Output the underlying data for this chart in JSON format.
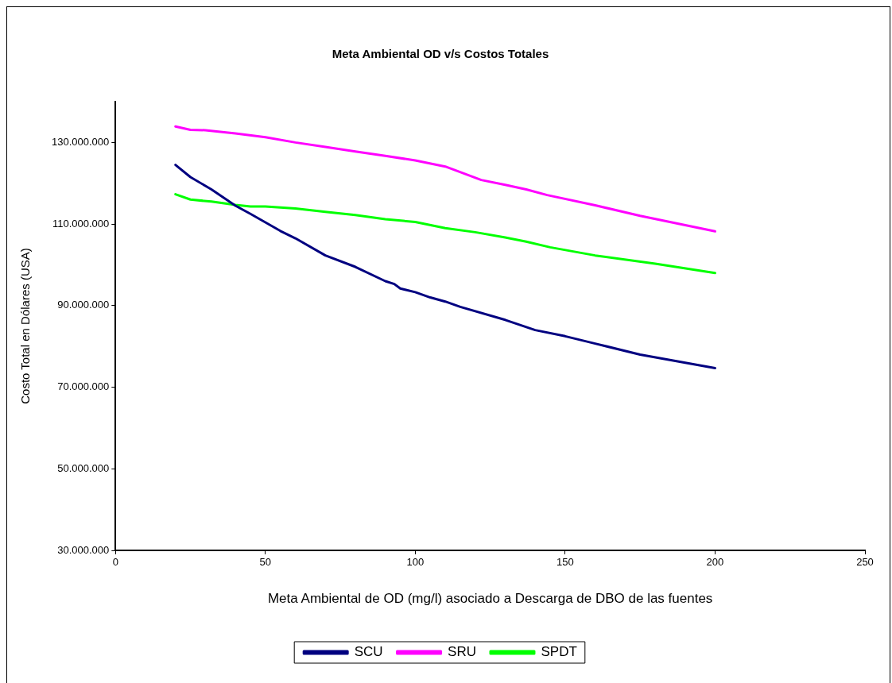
{
  "chart_data": {
    "type": "line",
    "title": "Meta Ambiental OD v/s Costos Totales",
    "xlabel": "Meta Ambiental de OD (mg/l) asociado a Descarga de DBO de las fuentes",
    "ylabel": "Costo Total en Dólares (USA)",
    "xlim": [
      0,
      250
    ],
    "xticks": [
      0,
      50,
      100,
      150,
      200,
      250
    ],
    "ylim": [
      30000000,
      140000000
    ],
    "yticks": [
      {
        "value": 30000000,
        "label": "30.000.000"
      },
      {
        "value": 50000000,
        "label": "50.000.000"
      },
      {
        "value": 70000000,
        "label": "70.000.000"
      },
      {
        "value": 90000000,
        "label": "90.000.000"
      },
      {
        "value": 110000000,
        "label": "110.000.000"
      },
      {
        "value": 130000000,
        "label": "130.000.000"
      }
    ],
    "legend": "bottom",
    "marker": "none",
    "line_style": "solid",
    "series": [
      {
        "name": "SCU",
        "color": "#000080",
        "x": [
          20,
          25,
          32,
          40,
          45,
          55,
          60,
          70,
          80,
          90,
          93,
          95,
          100,
          105,
          110,
          115,
          130,
          140,
          150,
          160,
          175,
          200
        ],
        "values": [
          124500000,
          121500000,
          118500000,
          114500000,
          112500000,
          108300000,
          106500000,
          102300000,
          99500000,
          96000000,
          95300000,
          94200000,
          93300000,
          92000000,
          91000000,
          89700000,
          86500000,
          84000000,
          82500000,
          80700000,
          78000000,
          74700000
        ]
      },
      {
        "name": "SRU",
        "color": "#ff00ff",
        "x": [
          20,
          25,
          30,
          40,
          50,
          60,
          70,
          80,
          90,
          100,
          110,
          122,
          130,
          137,
          144,
          160,
          175,
          200
        ],
        "values": [
          133900000,
          133100000,
          133000000,
          132200000,
          131300000,
          130000000,
          128900000,
          127800000,
          126700000,
          125600000,
          124100000,
          120800000,
          119600000,
          118500000,
          117100000,
          114600000,
          112000000,
          108200000
        ]
      },
      {
        "name": "SPDT",
        "color": "#00ff00",
        "x": [
          20,
          25,
          32,
          40,
          45,
          50,
          60,
          70,
          80,
          90,
          100,
          110,
          120,
          130,
          137,
          145,
          160,
          180,
          200
        ],
        "values": [
          117300000,
          116000000,
          115500000,
          114700000,
          114300000,
          114300000,
          113800000,
          113000000,
          112200000,
          111200000,
          110500000,
          109000000,
          108000000,
          106700000,
          105700000,
          104300000,
          102300000,
          100300000,
          98000000
        ]
      }
    ]
  }
}
